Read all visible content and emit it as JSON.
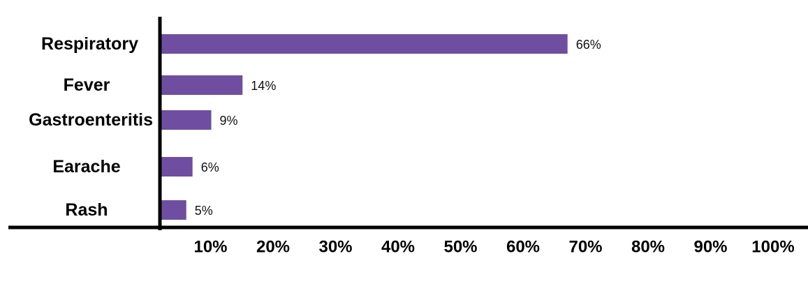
{
  "chart_data": {
    "type": "bar",
    "orientation": "horizontal",
    "categories": [
      "Respiratory",
      "Fever",
      "Gastroenteritis",
      "Earache",
      "Rash"
    ],
    "values": [
      66,
      14,
      9,
      6,
      5
    ],
    "data_labels": [
      "66%",
      "14%",
      "9%",
      "6%",
      "5%"
    ],
    "x_ticks": [
      "10%",
      "20%",
      "30%",
      "40%",
      "50%",
      "60%",
      "70%",
      "80%",
      "90%",
      "100%"
    ],
    "xlim": [
      0,
      100
    ],
    "grid": false,
    "legend": "none",
    "title": "",
    "xlabel": "",
    "ylabel": "",
    "colors": {
      "bar": "#6f4ea1",
      "axis": "#000000"
    }
  }
}
